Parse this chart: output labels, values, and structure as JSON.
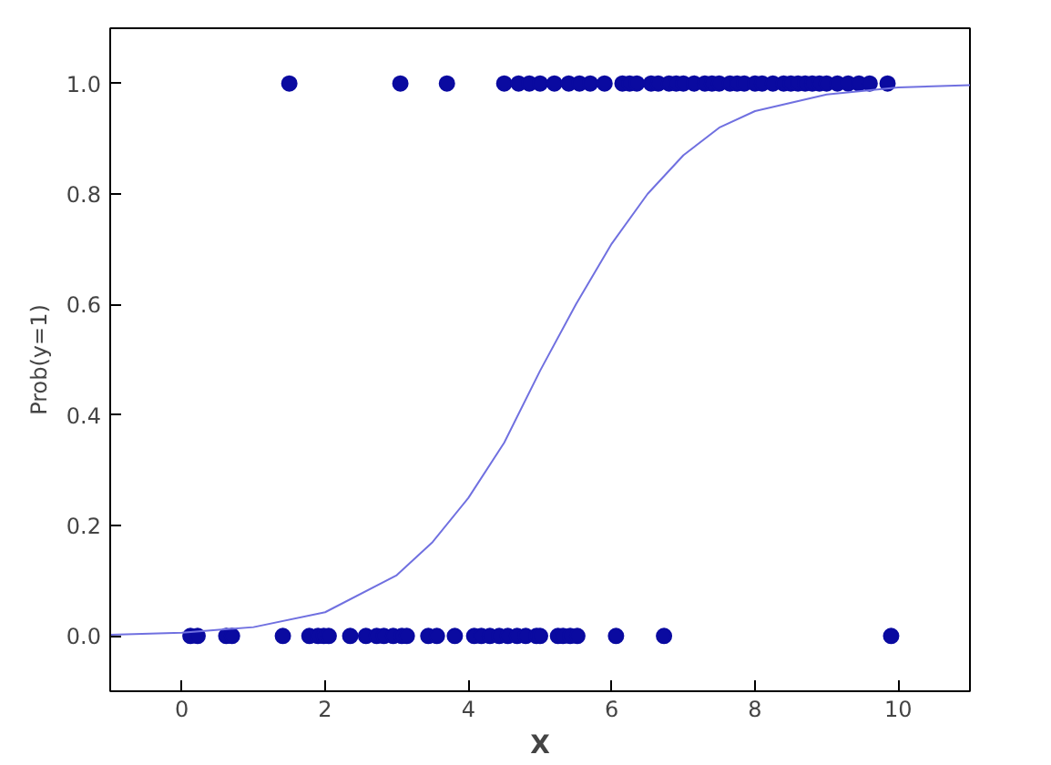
{
  "chart_data": {
    "type": "scatter",
    "xlabel": "X",
    "ylabel": "Prob(y=1)",
    "xlim": [
      -1,
      11
    ],
    "ylim": [
      -0.1,
      1.1
    ],
    "xticks": [
      0,
      2,
      4,
      6,
      8,
      10
    ],
    "yticks": [
      {
        "value": 0,
        "label": "0.0"
      },
      {
        "value": 0.2,
        "label": "0.2"
      },
      {
        "value": 0.4,
        "label": "0.4"
      },
      {
        "value": 0.6,
        "label": "0.6"
      },
      {
        "value": 0.8,
        "label": "0.8"
      },
      {
        "value": 1,
        "label": "1.0"
      }
    ],
    "grid": false,
    "marker": "circle",
    "series": [
      {
        "color": "#0a0aa0",
        "x": [
          1.5,
          3.05,
          3.7,
          4.5,
          4.7,
          4.85,
          5.0,
          5.2,
          5.4,
          5.55,
          5.7,
          5.9,
          6.15,
          6.25,
          6.35,
          6.55,
          6.65,
          6.8,
          6.9,
          7.0,
          7.15,
          7.3,
          7.4,
          7.5,
          7.65,
          7.75,
          7.85,
          8.0,
          8.1,
          8.25,
          8.4,
          8.5,
          8.6,
          8.7,
          8.8,
          8.9,
          9.0,
          9.15,
          9.3,
          9.45,
          9.6,
          9.85
        ],
        "values": [
          1,
          1,
          1,
          1,
          1,
          1,
          1,
          1,
          1,
          1,
          1,
          1,
          1,
          1,
          1,
          1,
          1,
          1,
          1,
          1,
          1,
          1,
          1,
          1,
          1,
          1,
          1,
          1,
          1,
          1,
          1,
          1,
          1,
          1,
          1,
          1,
          1,
          1,
          1,
          1,
          1,
          1
        ]
      },
      {
        "color": "#0a0aa0",
        "x": [
          0.12,
          0.22,
          0.62,
          0.7,
          1.41,
          1.78,
          1.9,
          1.98,
          2.05,
          2.35,
          2.57,
          2.72,
          2.82,
          2.95,
          3.07,
          3.14,
          3.44,
          3.56,
          3.81,
          4.08,
          4.18,
          4.3,
          4.43,
          4.55,
          4.68,
          4.8,
          4.95,
          5.0,
          5.25,
          5.32,
          5.42,
          5.52,
          6.06,
          6.73,
          9.9
        ],
        "values": [
          0,
          0,
          0,
          0,
          0,
          0,
          0,
          0,
          0,
          0,
          0,
          0,
          0,
          0,
          0,
          0,
          0,
          0,
          0,
          0,
          0,
          0,
          0,
          0,
          0,
          0,
          0,
          0,
          0,
          0,
          0,
          0,
          0,
          0,
          0
        ]
      },
      {
        "type": "line",
        "color": "#7070e0",
        "line_style": "solid",
        "marker": "none",
        "x": [
          -1,
          0,
          1,
          2,
          3,
          3.5,
          4,
          4.5,
          5,
          5.5,
          6,
          6.5,
          7,
          7.5,
          8,
          9,
          10,
          11
        ],
        "values": [
          0.002,
          0.006,
          0.016,
          0.043,
          0.11,
          0.17,
          0.25,
          0.35,
          0.48,
          0.6,
          0.71,
          0.8,
          0.87,
          0.92,
          0.95,
          0.98,
          0.993,
          0.997
        ]
      }
    ]
  }
}
